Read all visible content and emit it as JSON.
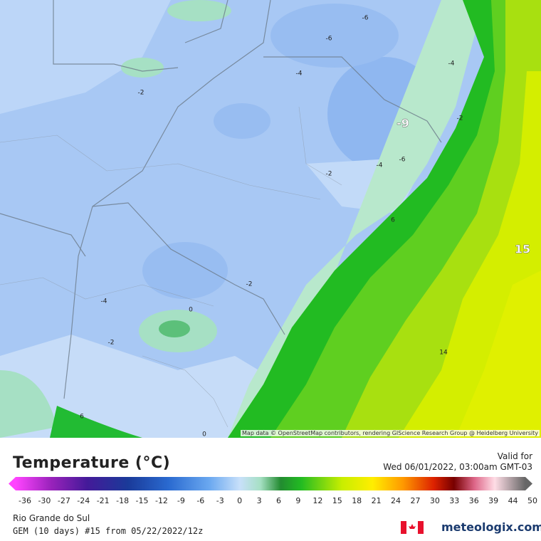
{
  "map": {
    "labels": [
      "-6",
      "-6",
      "-4",
      "-4",
      "-2",
      "-9",
      "-2",
      "-6",
      "-4",
      "-2",
      "6",
      "15",
      "-2",
      "-4",
      "0",
      "-2",
      "14",
      "6",
      "0"
    ],
    "attribution": "Map data © OpenStreetMap contributors, rendering GIScience Research Group @ Heidelberg University"
  },
  "legend": {
    "title": "Temperature (°C)",
    "valid_label": "Valid for",
    "valid_time": "Wed 06/01/2022, 03:00am GMT-03",
    "ticks": [
      -36,
      -30,
      -27,
      -24,
      -21,
      -18,
      -15,
      -12,
      -9,
      -6,
      -3,
      0,
      3,
      6,
      9,
      12,
      15,
      18,
      21,
      24,
      27,
      30,
      33,
      36,
      39,
      44,
      50
    ]
  },
  "footer": {
    "region": "Rio Grande do Sul",
    "model": "GEM (10 days) #15 from  05/22/2022/12z",
    "logo": "meteologix.com"
  }
}
